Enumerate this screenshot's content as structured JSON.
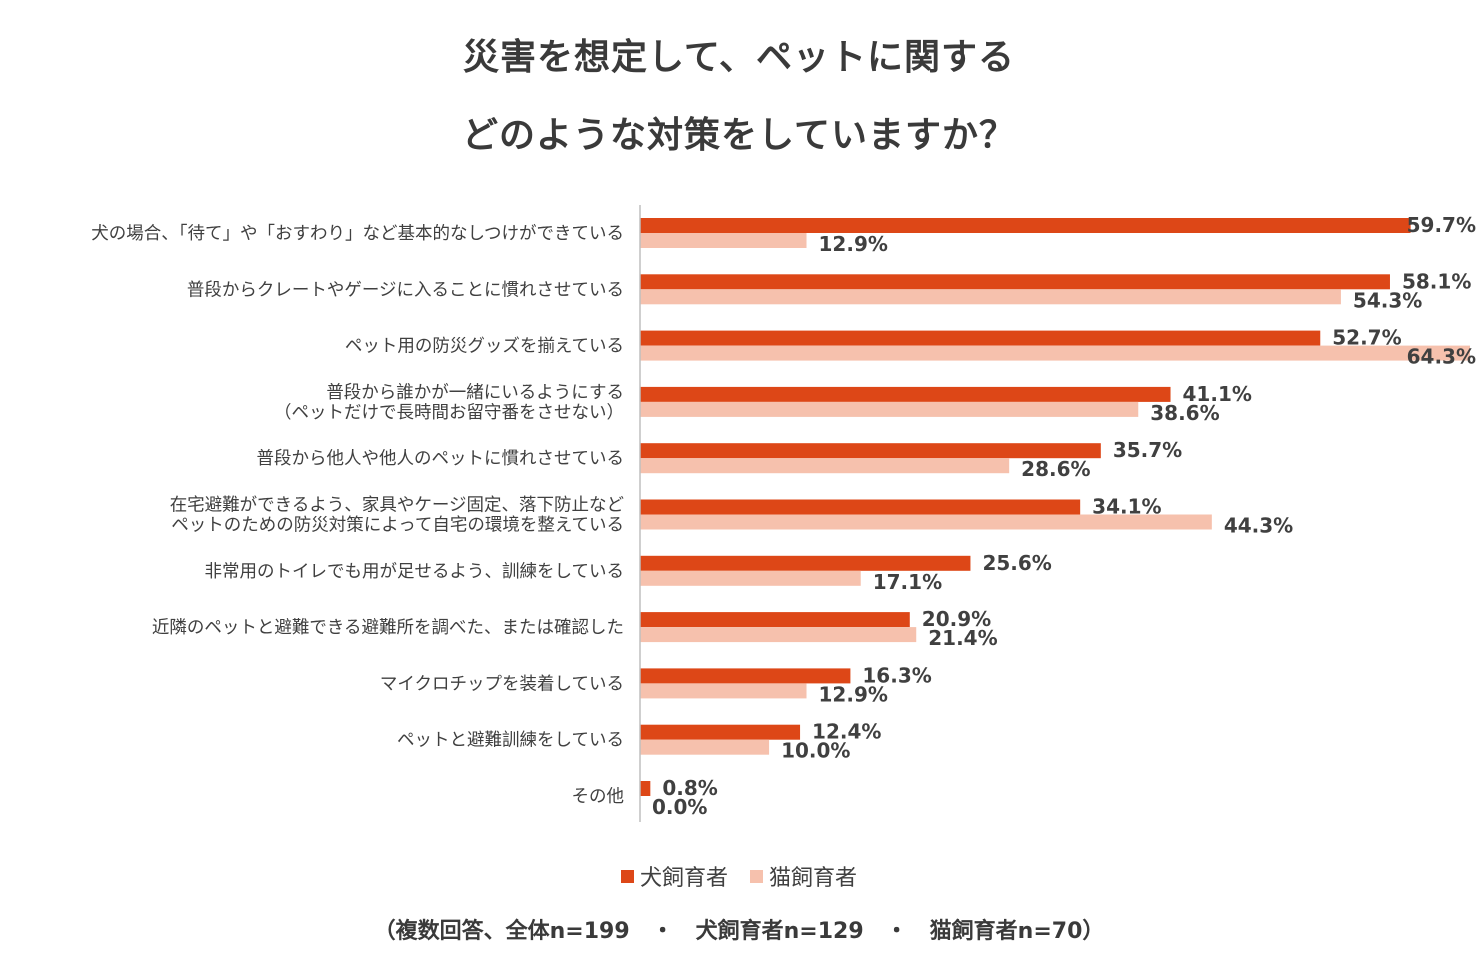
{
  "title": {
    "line1": "災害を想定して、ペットに関する",
    "line2": "どのような対策をしていますか？"
  },
  "colors": {
    "dog": "#dd4717",
    "cat": "#f6c1ad",
    "axis": "#bfbfbf"
  },
  "legend": {
    "dog_label": "犬飼育者",
    "cat_label": "猫飼育者"
  },
  "footnote": "（複数回答、全体n=199　・　犬飼育者n=129　・　猫飼育者n=70）",
  "chart_data": {
    "type": "bar",
    "orientation": "horizontal",
    "title": "災害を想定して、ペットに関する どのような対策をしていますか？",
    "xlabel": "",
    "ylabel": "",
    "xlim": [
      0,
      64.3
    ],
    "grid": false,
    "legend_position": "bottom",
    "value_suffix": "%",
    "categories": [
      [
        "犬の場合、「待て」や「おすわり」など基本的なしつけができている"
      ],
      [
        "普段からクレートやゲージに入ることに慣れさせている"
      ],
      [
        "ペット用の防災グッズを揃えている"
      ],
      [
        "普段から誰かが一緒にいるようにする",
        "（ペットだけで長時間お留守番をさせない）"
      ],
      [
        "普段から他人や他人のペットに慣れさせている"
      ],
      [
        "在宅避難ができるよう、家具やケージ固定、落下防止など",
        "ペットのための防災対策によって自宅の環境を整えている"
      ],
      [
        "非常用のトイレでも用が足せるよう、訓練をしている"
      ],
      [
        "近隣のペットと避難できる避難所を調べた、または確認した"
      ],
      [
        "マイクロチップを装着している"
      ],
      [
        "ペットと避難訓練をしている"
      ],
      [
        "その他"
      ]
    ],
    "series": [
      {
        "name": "犬飼育者",
        "values": [
          59.7,
          58.1,
          52.7,
          41.1,
          35.7,
          34.1,
          25.6,
          20.9,
          16.3,
          12.4,
          0.8
        ]
      },
      {
        "name": "猫飼育者",
        "values": [
          12.9,
          54.3,
          64.3,
          38.6,
          28.6,
          44.3,
          17.1,
          21.4,
          12.9,
          10.0,
          0.0
        ]
      }
    ]
  }
}
